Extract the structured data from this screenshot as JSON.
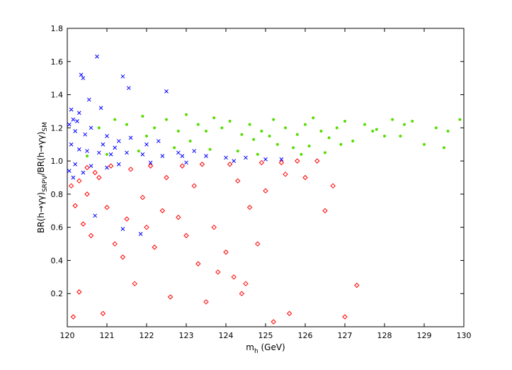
{
  "chart_data": {
    "type": "scatter",
    "title": "",
    "xlabel": {
      "main": "m",
      "sub": "h",
      "rest": " (GeV)"
    },
    "ylabel": {
      "part1": "BR(h→γγ)",
      "sub1": "SRPV",
      "part2": "/BR(h→γγ)",
      "sub2": "SM"
    },
    "xlim": [
      120,
      130
    ],
    "ylim": [
      0,
      1.8
    ],
    "xticks": [
      {
        "value": 120,
        "label": "120"
      },
      {
        "value": 121,
        "label": "121"
      },
      {
        "value": 122,
        "label": "122"
      },
      {
        "value": 123,
        "label": "123"
      },
      {
        "value": 124,
        "label": "124"
      },
      {
        "value": 125,
        "label": "125"
      },
      {
        "value": 126,
        "label": "126"
      },
      {
        "value": 127,
        "label": "127"
      },
      {
        "value": 128,
        "label": "128"
      },
      {
        "value": 129,
        "label": "129"
      },
      {
        "value": 130,
        "label": "130"
      }
    ],
    "yticks": [
      {
        "value": 0.2,
        "label": "0.2"
      },
      {
        "value": 0.4,
        "label": "0.4"
      },
      {
        "value": 0.6,
        "label": "0.6"
      },
      {
        "value": 0.8,
        "label": "0.8"
      },
      {
        "value": 1.0,
        "label": "1.0"
      },
      {
        "value": 1.2,
        "label": "1.2"
      },
      {
        "value": 1.4,
        "label": "1.4"
      },
      {
        "value": 1.6,
        "label": "1.6"
      },
      {
        "value": 1.8,
        "label": "1.8"
      }
    ],
    "grid": false,
    "legend": "none",
    "series": [
      {
        "marker": "cross",
        "color": "#0000ff",
        "points": [
          [
            120.1,
            1.31
          ],
          [
            120.15,
            1.25
          ],
          [
            120.3,
            1.29
          ],
          [
            120.4,
            1.5
          ],
          [
            120.35,
            1.52
          ],
          [
            120.55,
            1.37
          ],
          [
            120.75,
            1.63
          ],
          [
            120.85,
            1.32
          ],
          [
            121.4,
            1.51
          ],
          [
            121.55,
            1.44
          ],
          [
            122.5,
            1.42
          ],
          [
            120.05,
            1.22
          ],
          [
            120.2,
            1.18
          ],
          [
            120.6,
            1.2
          ],
          [
            121.0,
            1.15
          ],
          [
            121.3,
            1.12
          ],
          [
            121.6,
            1.14
          ],
          [
            122.0,
            1.1
          ],
          [
            120.7,
            0.67
          ],
          [
            121.4,
            0.59
          ],
          [
            121.85,
            0.56
          ],
          [
            120.25,
            1.24
          ],
          [
            120.45,
            1.16
          ],
          [
            120.9,
            1.1
          ],
          [
            121.2,
            1.08
          ],
          [
            122.3,
            1.12
          ],
          [
            122.8,
            1.05
          ],
          [
            123.2,
            1.06
          ],
          [
            120.1,
            1.1
          ],
          [
            120.3,
            1.07
          ],
          [
            120.5,
            1.06
          ],
          [
            120.8,
            1.05
          ],
          [
            121.1,
            1.04
          ],
          [
            121.5,
            1.05
          ],
          [
            121.9,
            1.04
          ],
          [
            122.4,
            1.03
          ],
          [
            122.9,
            1.03
          ],
          [
            123.5,
            1.03
          ],
          [
            124.0,
            1.02
          ],
          [
            124.5,
            1.02
          ],
          [
            125.0,
            1.01
          ],
          [
            125.4,
            1.01
          ],
          [
            120.2,
            0.98
          ],
          [
            120.6,
            0.97
          ],
          [
            121.3,
            0.98
          ],
          [
            122.1,
            0.99
          ],
          [
            123.0,
            0.99
          ],
          [
            124.2,
            1.0
          ],
          [
            120.05,
            0.94
          ],
          [
            120.15,
            0.9
          ],
          [
            120.4,
            0.93
          ],
          [
            121.0,
            0.96
          ]
        ]
      },
      {
        "marker": "dot",
        "color": "#55dd00",
        "points": [
          [
            120.8,
            1.2
          ],
          [
            121.2,
            1.25
          ],
          [
            121.5,
            1.22
          ],
          [
            121.9,
            1.27
          ],
          [
            122.2,
            1.2
          ],
          [
            122.5,
            1.25
          ],
          [
            122.8,
            1.18
          ],
          [
            123.0,
            1.28
          ],
          [
            123.3,
            1.22
          ],
          [
            123.5,
            1.18
          ],
          [
            123.7,
            1.26
          ],
          [
            123.9,
            1.2
          ],
          [
            124.1,
            1.24
          ],
          [
            124.4,
            1.16
          ],
          [
            124.6,
            1.22
          ],
          [
            124.9,
            1.18
          ],
          [
            125.2,
            1.25
          ],
          [
            125.5,
            1.2
          ],
          [
            125.8,
            1.16
          ],
          [
            126.0,
            1.22
          ],
          [
            126.2,
            1.26
          ],
          [
            126.4,
            1.18
          ],
          [
            126.6,
            1.14
          ],
          [
            126.8,
            1.2
          ],
          [
            127.0,
            1.24
          ],
          [
            127.2,
            1.12
          ],
          [
            127.5,
            1.22
          ],
          [
            127.7,
            1.18
          ],
          [
            128.0,
            1.15
          ],
          [
            128.2,
            1.25
          ],
          [
            128.5,
            1.22
          ],
          [
            128.7,
            1.24
          ],
          [
            129.0,
            1.1
          ],
          [
            129.3,
            1.2
          ],
          [
            129.6,
            1.18
          ],
          [
            129.9,
            1.25
          ],
          [
            125.3,
            1.1
          ],
          [
            125.7,
            1.08
          ],
          [
            126.1,
            1.09
          ],
          [
            126.9,
            1.1
          ],
          [
            124.3,
            1.06
          ],
          [
            123.6,
            1.07
          ],
          [
            122.7,
            1.08
          ],
          [
            121.8,
            1.06
          ],
          [
            121.0,
            1.04
          ],
          [
            120.5,
            1.03
          ],
          [
            126.5,
            1.05
          ],
          [
            125.9,
            1.04
          ],
          [
            124.8,
            1.04
          ],
          [
            128.4,
            1.15
          ],
          [
            129.5,
            1.08
          ],
          [
            127.8,
            1.19
          ],
          [
            122.0,
            1.15
          ],
          [
            123.1,
            1.12
          ],
          [
            124.7,
            1.13
          ],
          [
            125.1,
            1.15
          ]
        ]
      },
      {
        "marker": "diamond",
        "color": "#ff0000",
        "points": [
          [
            120.1,
            0.85
          ],
          [
            120.2,
            0.73
          ],
          [
            120.3,
            0.88
          ],
          [
            120.4,
            0.62
          ],
          [
            120.5,
            0.8
          ],
          [
            120.6,
            0.55
          ],
          [
            120.8,
            0.9
          ],
          [
            121.0,
            0.72
          ],
          [
            121.2,
            0.5
          ],
          [
            121.4,
            0.42
          ],
          [
            121.5,
            0.65
          ],
          [
            121.7,
            0.26
          ],
          [
            121.9,
            0.78
          ],
          [
            122.0,
            0.6
          ],
          [
            122.2,
            0.48
          ],
          [
            122.4,
            0.7
          ],
          [
            122.6,
            0.18
          ],
          [
            122.8,
            0.66
          ],
          [
            123.0,
            0.55
          ],
          [
            123.3,
            0.38
          ],
          [
            123.5,
            0.15
          ],
          [
            123.7,
            0.6
          ],
          [
            124.0,
            0.45
          ],
          [
            124.2,
            0.3
          ],
          [
            124.4,
            0.2
          ],
          [
            124.6,
            0.72
          ],
          [
            124.8,
            0.5
          ],
          [
            125.0,
            0.82
          ],
          [
            125.2,
            0.03
          ],
          [
            125.6,
            0.08
          ],
          [
            126.0,
            0.9
          ],
          [
            126.5,
            0.7
          ],
          [
            127.0,
            0.06
          ],
          [
            127.3,
            0.25
          ],
          [
            120.9,
            0.08
          ],
          [
            120.3,
            0.21
          ],
          [
            120.15,
            0.06
          ],
          [
            124.5,
            0.26
          ],
          [
            123.8,
            0.33
          ],
          [
            121.1,
            0.97
          ],
          [
            121.6,
            0.95
          ],
          [
            122.1,
            0.97
          ],
          [
            122.9,
            0.97
          ],
          [
            123.4,
            0.98
          ],
          [
            124.1,
            0.98
          ],
          [
            124.9,
            0.99
          ],
          [
            125.4,
            0.99
          ],
          [
            125.8,
            1.0
          ],
          [
            126.3,
            1.0
          ],
          [
            120.5,
            0.96
          ],
          [
            120.7,
            0.93
          ],
          [
            122.5,
            0.9
          ],
          [
            123.2,
            0.85
          ],
          [
            124.3,
            0.88
          ],
          [
            125.5,
            0.92
          ],
          [
            126.7,
            0.85
          ]
        ]
      }
    ]
  }
}
